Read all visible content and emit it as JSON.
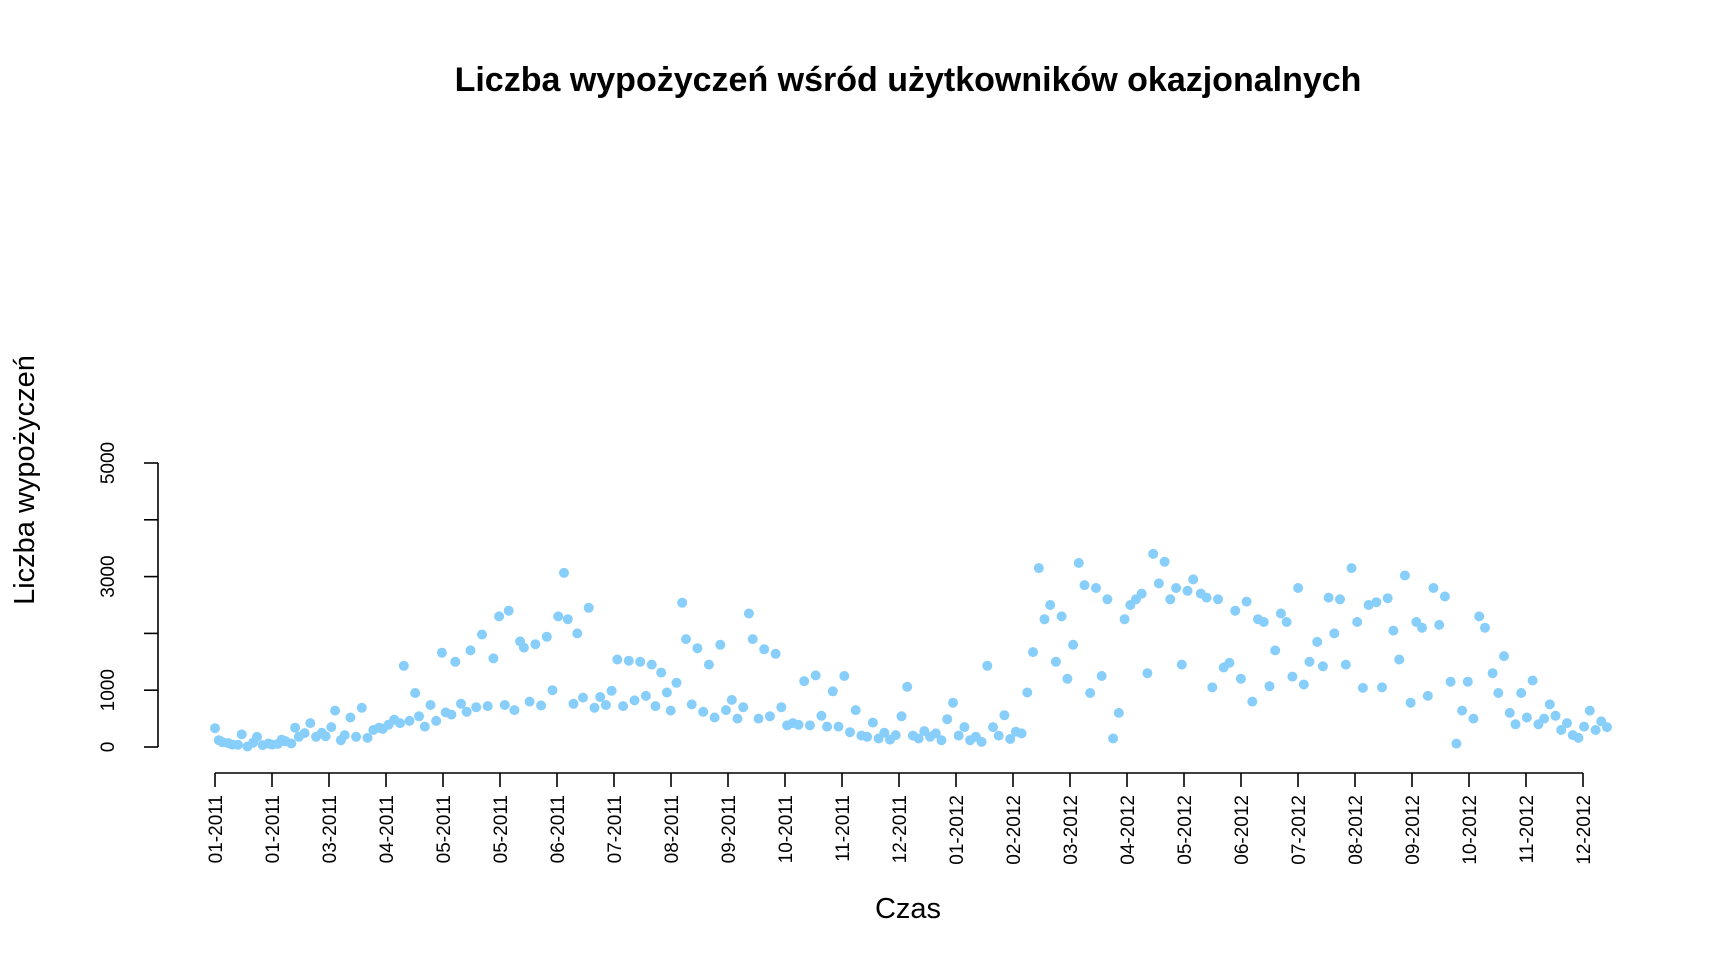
{
  "chart_data": {
    "type": "scatter",
    "title": "Liczba wypożyczeń wśród użytkowników okazjonalnych",
    "xlabel": "Czas",
    "ylabel": "Liczba wypożyczeń",
    "ylim": [
      0,
      5000
    ],
    "yticks": [
      0,
      1000,
      3000,
      5000
    ],
    "xticks": [
      "01-2011",
      "01-2011",
      "03-2011",
      "04-2011",
      "05-2011",
      "05-2011",
      "06-2011",
      "07-2011",
      "08-2011",
      "09-2011",
      "10-2011",
      "11-2011",
      "12-2011",
      "01-2012",
      "02-2012",
      "03-2012",
      "04-2012",
      "05-2012",
      "06-2012",
      "07-2012",
      "08-2012",
      "09-2012",
      "10-2012",
      "11-2012",
      "12-2012"
    ],
    "x_range": [
      "2011-01-01",
      "2012-12-31"
    ],
    "point_color": "#87CEFA",
    "grid": false,
    "series": [
      {
        "points": [
          [
            "2011-01-01",
            331
          ],
          [
            "2011-01-03",
            120
          ],
          [
            "2011-01-05",
            82
          ],
          [
            "2011-01-08",
            68
          ],
          [
            "2011-01-10",
            42
          ],
          [
            "2011-01-13",
            38
          ],
          [
            "2011-01-15",
            222
          ],
          [
            "2011-01-18",
            9
          ],
          [
            "2011-01-21",
            75
          ],
          [
            "2011-01-23",
            178
          ],
          [
            "2011-01-26",
            34
          ],
          [
            "2011-01-29",
            61
          ],
          [
            "2011-01-31",
            42
          ],
          [
            "2011-02-03",
            55
          ],
          [
            "2011-02-05",
            128
          ],
          [
            "2011-02-07",
            100
          ],
          [
            "2011-02-10",
            62
          ],
          [
            "2011-02-12",
            340
          ],
          [
            "2011-02-14",
            180
          ],
          [
            "2011-02-17",
            245
          ],
          [
            "2011-02-20",
            420
          ],
          [
            "2011-02-23",
            180
          ],
          [
            "2011-02-26",
            250
          ],
          [
            "2011-02-28",
            190
          ],
          [
            "2011-03-03",
            350
          ],
          [
            "2011-03-05",
            640
          ],
          [
            "2011-03-08",
            120
          ],
          [
            "2011-03-10",
            210
          ],
          [
            "2011-03-13",
            520
          ],
          [
            "2011-03-16",
            180
          ],
          [
            "2011-03-19",
            690
          ],
          [
            "2011-03-22",
            160
          ],
          [
            "2011-03-25",
            300
          ],
          [
            "2011-03-28",
            340
          ],
          [
            "2011-03-30",
            320
          ],
          [
            "2011-04-02",
            390
          ],
          [
            "2011-04-05",
            480
          ],
          [
            "2011-04-08",
            420
          ],
          [
            "2011-04-10",
            1430
          ],
          [
            "2011-04-13",
            460
          ],
          [
            "2011-04-16",
            950
          ],
          [
            "2011-04-18",
            540
          ],
          [
            "2011-04-21",
            360
          ],
          [
            "2011-04-24",
            740
          ],
          [
            "2011-04-27",
            460
          ],
          [
            "2011-04-30",
            1660
          ],
          [
            "2011-05-02",
            610
          ],
          [
            "2011-05-05",
            570
          ],
          [
            "2011-05-07",
            1500
          ],
          [
            "2011-05-10",
            760
          ],
          [
            "2011-05-13",
            620
          ],
          [
            "2011-05-15",
            1700
          ],
          [
            "2011-05-18",
            700
          ],
          [
            "2011-05-21",
            1980
          ],
          [
            "2011-05-24",
            720
          ],
          [
            "2011-05-27",
            1560
          ],
          [
            "2011-05-30",
            2300
          ],
          [
            "2011-06-02",
            740
          ],
          [
            "2011-06-04",
            2400
          ],
          [
            "2011-06-07",
            650
          ],
          [
            "2011-06-10",
            1860
          ],
          [
            "2011-06-12",
            1750
          ],
          [
            "2011-06-15",
            800
          ],
          [
            "2011-06-18",
            1810
          ],
          [
            "2011-06-21",
            730
          ],
          [
            "2011-06-24",
            1940
          ],
          [
            "2011-06-27",
            1000
          ],
          [
            "2011-06-30",
            2300
          ],
          [
            "2011-07-03",
            3065
          ],
          [
            "2011-07-05",
            2250
          ],
          [
            "2011-07-08",
            760
          ],
          [
            "2011-07-10",
            2000
          ],
          [
            "2011-07-13",
            870
          ],
          [
            "2011-07-16",
            2450
          ],
          [
            "2011-07-19",
            690
          ],
          [
            "2011-07-22",
            880
          ],
          [
            "2011-07-25",
            740
          ],
          [
            "2011-07-28",
            990
          ],
          [
            "2011-07-31",
            1540
          ],
          [
            "2011-08-03",
            720
          ],
          [
            "2011-08-06",
            1520
          ],
          [
            "2011-08-09",
            820
          ],
          [
            "2011-08-12",
            1500
          ],
          [
            "2011-08-15",
            900
          ],
          [
            "2011-08-18",
            1450
          ],
          [
            "2011-08-20",
            720
          ],
          [
            "2011-08-23",
            1310
          ],
          [
            "2011-08-26",
            960
          ],
          [
            "2011-08-28",
            640
          ],
          [
            "2011-08-31",
            1130
          ],
          [
            "2011-09-03",
            2540
          ],
          [
            "2011-09-05",
            1900
          ],
          [
            "2011-09-08",
            750
          ],
          [
            "2011-09-11",
            1740
          ],
          [
            "2011-09-14",
            620
          ],
          [
            "2011-09-17",
            1450
          ],
          [
            "2011-09-20",
            520
          ],
          [
            "2011-09-23",
            1800
          ],
          [
            "2011-09-26",
            650
          ],
          [
            "2011-09-29",
            830
          ],
          [
            "2011-10-02",
            500
          ],
          [
            "2011-10-05",
            700
          ],
          [
            "2011-10-08",
            2350
          ],
          [
            "2011-10-10",
            1900
          ],
          [
            "2011-10-13",
            500
          ],
          [
            "2011-10-16",
            1720
          ],
          [
            "2011-10-19",
            540
          ],
          [
            "2011-10-22",
            1640
          ],
          [
            "2011-10-25",
            700
          ],
          [
            "2011-10-28",
            380
          ],
          [
            "2011-10-31",
            420
          ],
          [
            "2011-11-03",
            390
          ],
          [
            "2011-11-06",
            1160
          ],
          [
            "2011-11-09",
            380
          ],
          [
            "2011-11-12",
            1260
          ],
          [
            "2011-11-15",
            550
          ],
          [
            "2011-11-18",
            360
          ],
          [
            "2011-11-21",
            980
          ],
          [
            "2011-11-24",
            360
          ],
          [
            "2011-11-27",
            1250
          ],
          [
            "2011-11-30",
            260
          ],
          [
            "2011-12-03",
            650
          ],
          [
            "2011-12-06",
            200
          ],
          [
            "2011-12-09",
            180
          ],
          [
            "2011-12-12",
            430
          ],
          [
            "2011-12-15",
            150
          ],
          [
            "2011-12-18",
            250
          ],
          [
            "2011-12-21",
            130
          ],
          [
            "2011-12-24",
            210
          ],
          [
            "2011-12-27",
            540
          ],
          [
            "2011-12-30",
            1060
          ],
          [
            "2012-01-02",
            200
          ],
          [
            "2012-01-05",
            150
          ],
          [
            "2012-01-08",
            280
          ],
          [
            "2012-01-11",
            180
          ],
          [
            "2012-01-14",
            240
          ],
          [
            "2012-01-17",
            120
          ],
          [
            "2012-01-20",
            490
          ],
          [
            "2012-01-23",
            780
          ],
          [
            "2012-01-26",
            200
          ],
          [
            "2012-01-29",
            350
          ],
          [
            "2012-02-01",
            120
          ],
          [
            "2012-02-04",
            180
          ],
          [
            "2012-02-07",
            90
          ],
          [
            "2012-02-10",
            1430
          ],
          [
            "2012-02-13",
            350
          ],
          [
            "2012-02-16",
            200
          ],
          [
            "2012-02-19",
            560
          ],
          [
            "2012-02-22",
            140
          ],
          [
            "2012-02-25",
            270
          ],
          [
            "2012-02-28",
            240
          ],
          [
            "2012-03-02",
            960
          ],
          [
            "2012-03-05",
            1670
          ],
          [
            "2012-03-08",
            3150
          ],
          [
            "2012-03-11",
            2250
          ],
          [
            "2012-03-14",
            2500
          ],
          [
            "2012-03-17",
            1500
          ],
          [
            "2012-03-20",
            2300
          ],
          [
            "2012-03-23",
            1200
          ],
          [
            "2012-03-26",
            1800
          ],
          [
            "2012-03-29",
            3240
          ],
          [
            "2012-04-01",
            2850
          ],
          [
            "2012-04-04",
            950
          ],
          [
            "2012-04-07",
            2800
          ],
          [
            "2012-04-10",
            1250
          ],
          [
            "2012-04-13",
            2600
          ],
          [
            "2012-04-16",
            150
          ],
          [
            "2012-04-19",
            600
          ],
          [
            "2012-04-22",
            2250
          ],
          [
            "2012-04-25",
            2500
          ],
          [
            "2012-04-28",
            2600
          ],
          [
            "2012-05-01",
            2700
          ],
          [
            "2012-05-04",
            1300
          ],
          [
            "2012-05-07",
            3400
          ],
          [
            "2012-05-10",
            2880
          ],
          [
            "2012-05-13",
            3260
          ],
          [
            "2012-05-16",
            2600
          ],
          [
            "2012-05-19",
            2800
          ],
          [
            "2012-05-22",
            1450
          ],
          [
            "2012-05-25",
            2750
          ],
          [
            "2012-05-28",
            2950
          ],
          [
            "2012-06-01",
            2700
          ],
          [
            "2012-06-04",
            2630
          ],
          [
            "2012-06-07",
            1050
          ],
          [
            "2012-06-10",
            2600
          ],
          [
            "2012-06-13",
            1400
          ],
          [
            "2012-06-16",
            1480
          ],
          [
            "2012-06-19",
            2400
          ],
          [
            "2012-06-22",
            1200
          ],
          [
            "2012-06-25",
            2560
          ],
          [
            "2012-06-28",
            800
          ],
          [
            "2012-07-01",
            2250
          ],
          [
            "2012-07-04",
            2200
          ],
          [
            "2012-07-07",
            1070
          ],
          [
            "2012-07-10",
            1700
          ],
          [
            "2012-07-13",
            2350
          ],
          [
            "2012-07-16",
            2200
          ],
          [
            "2012-07-19",
            1240
          ],
          [
            "2012-07-22",
            2800
          ],
          [
            "2012-07-25",
            1100
          ],
          [
            "2012-07-28",
            1500
          ],
          [
            "2012-08-01",
            1850
          ],
          [
            "2012-08-04",
            1420
          ],
          [
            "2012-08-07",
            2630
          ],
          [
            "2012-08-10",
            2000
          ],
          [
            "2012-08-13",
            2600
          ],
          [
            "2012-08-16",
            1450
          ],
          [
            "2012-08-19",
            3150
          ],
          [
            "2012-08-22",
            2200
          ],
          [
            "2012-08-25",
            1040
          ],
          [
            "2012-08-28",
            2500
          ],
          [
            "2012-09-01",
            2550
          ],
          [
            "2012-09-04",
            1050
          ],
          [
            "2012-09-07",
            2620
          ],
          [
            "2012-09-10",
            2050
          ],
          [
            "2012-09-13",
            1540
          ],
          [
            "2012-09-16",
            3020
          ],
          [
            "2012-09-19",
            780
          ],
          [
            "2012-09-22",
            2200
          ],
          [
            "2012-09-25",
            2100
          ],
          [
            "2012-09-28",
            900
          ],
          [
            "2012-10-01",
            2800
          ],
          [
            "2012-10-04",
            2150
          ],
          [
            "2012-10-07",
            2650
          ],
          [
            "2012-10-10",
            1150
          ],
          [
            "2012-10-13",
            60
          ],
          [
            "2012-10-16",
            640
          ],
          [
            "2012-10-19",
            1150
          ],
          [
            "2012-10-22",
            500
          ],
          [
            "2012-10-25",
            2300
          ],
          [
            "2012-10-28",
            2100
          ],
          [
            "2012-11-01",
            1300
          ],
          [
            "2012-11-04",
            950
          ],
          [
            "2012-11-07",
            1600
          ],
          [
            "2012-11-10",
            600
          ],
          [
            "2012-11-13",
            400
          ],
          [
            "2012-11-16",
            950
          ],
          [
            "2012-11-19",
            520
          ],
          [
            "2012-11-22",
            1170
          ],
          [
            "2012-11-25",
            400
          ],
          [
            "2012-11-28",
            500
          ],
          [
            "2012-12-01",
            750
          ],
          [
            "2012-12-04",
            550
          ],
          [
            "2012-12-07",
            300
          ],
          [
            "2012-12-10",
            420
          ],
          [
            "2012-12-13",
            210
          ],
          [
            "2012-12-16",
            160
          ],
          [
            "2012-12-19",
            360
          ],
          [
            "2012-12-22",
            640
          ],
          [
            "2012-12-25",
            300
          ],
          [
            "2012-12-28",
            450
          ],
          [
            "2012-12-31",
            350
          ]
        ]
      }
    ]
  }
}
